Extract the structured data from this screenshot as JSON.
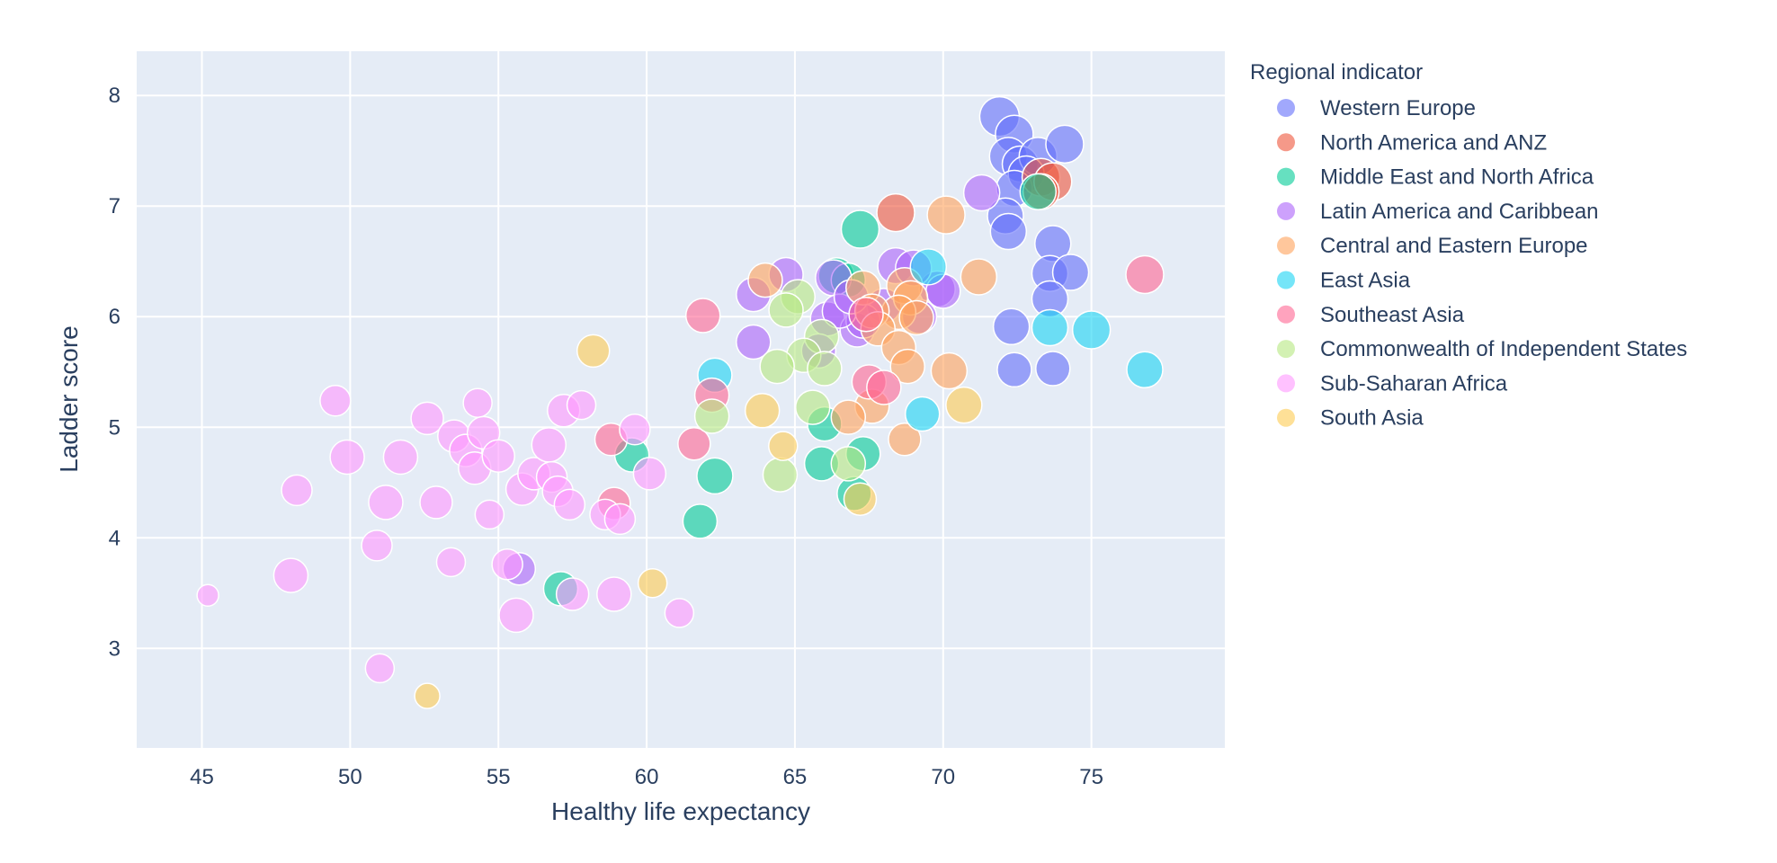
{
  "chart_data": {
    "type": "scatter",
    "xlabel": "Healthy life expectancy",
    "ylabel": "Ladder score",
    "xlim": [
      42.8,
      79.5
    ],
    "ylim": [
      2.1,
      8.4
    ],
    "x_ticks": [
      45,
      50,
      55,
      60,
      65,
      70,
      75
    ],
    "y_ticks": [
      3,
      4,
      5,
      6,
      7,
      8
    ],
    "grid": true,
    "marker_opacity": 0.6,
    "legend": {
      "title": "Regional indicator",
      "placement": "right"
    },
    "plot_bgcolor": "#e5ecf6",
    "series": [
      {
        "name": "Western Europe",
        "color": "#636efa",
        "points": [
          [
            71.9,
            7.81,
            22
          ],
          [
            72.4,
            7.65,
            21
          ],
          [
            72.2,
            7.45,
            21
          ],
          [
            72.6,
            7.38,
            20
          ],
          [
            73.2,
            7.45,
            21
          ],
          [
            74.1,
            7.56,
            21
          ],
          [
            72.8,
            7.29,
            20
          ],
          [
            72.4,
            7.16,
            20
          ],
          [
            72.1,
            6.91,
            20
          ],
          [
            72.2,
            6.77,
            20
          ],
          [
            73.7,
            6.66,
            20
          ],
          [
            73.6,
            6.39,
            20
          ],
          [
            74.3,
            6.4,
            20
          ],
          [
            73.6,
            6.16,
            20
          ],
          [
            72.3,
            5.91,
            20
          ],
          [
            73.7,
            5.53,
            19
          ],
          [
            72.4,
            5.52,
            19
          ]
        ]
      },
      {
        "name": "North America and ANZ",
        "color": "#ef553b",
        "points": [
          [
            73.3,
            7.26,
            21
          ],
          [
            73.7,
            7.22,
            21
          ],
          [
            68.4,
            6.94,
            21
          ],
          [
            73.3,
            7.13,
            20
          ]
        ]
      },
      {
        "name": "Middle East and North Africa",
        "color": "#00cc96",
        "points": [
          [
            67.2,
            6.79,
            21
          ],
          [
            73.2,
            7.13,
            20
          ],
          [
            66.4,
            6.37,
            20
          ],
          [
            62.3,
            4.56,
            20
          ],
          [
            61.8,
            4.15,
            19
          ],
          [
            66.0,
            5.03,
            19
          ],
          [
            65.9,
            4.67,
            19
          ],
          [
            67.0,
            4.4,
            19
          ],
          [
            67.3,
            4.76,
            19
          ],
          [
            57.1,
            3.54,
            19
          ],
          [
            59.5,
            4.75,
            19
          ],
          [
            66.8,
            6.33,
            19
          ]
        ]
      },
      {
        "name": "Latin America and Caribbean",
        "color": "#ab63fa",
        "points": [
          [
            71.3,
            7.12,
            20
          ],
          [
            69.8,
            6.25,
            20
          ],
          [
            68.4,
            6.46,
            20
          ],
          [
            66.3,
            6.35,
            20
          ],
          [
            69.0,
            6.44,
            20
          ],
          [
            64.7,
            6.38,
            19
          ],
          [
            63.6,
            6.2,
            19
          ],
          [
            66.1,
            5.98,
            19
          ],
          [
            69.2,
            6.0,
            19
          ],
          [
            63.6,
            5.77,
            19
          ],
          [
            67.1,
            5.88,
            19
          ],
          [
            68.0,
            6.1,
            19
          ],
          [
            67.3,
            5.96,
            19
          ],
          [
            65.8,
            5.69,
            19
          ],
          [
            66.5,
            6.05,
            19
          ],
          [
            55.7,
            3.72,
            18
          ],
          [
            66.9,
            6.18,
            19
          ],
          [
            70.0,
            6.23,
            19
          ]
        ]
      },
      {
        "name": "Central and Eastern Europe",
        "color": "#ffa15a",
        "points": [
          [
            70.1,
            6.92,
            21
          ],
          [
            71.2,
            6.36,
            20
          ],
          [
            68.7,
            6.28,
            20
          ],
          [
            64.0,
            6.33,
            19
          ],
          [
            67.3,
            6.26,
            19
          ],
          [
            68.9,
            6.17,
            19
          ],
          [
            68.5,
            6.04,
            19
          ],
          [
            67.6,
            6.05,
            19
          ],
          [
            69.1,
            5.99,
            19
          ],
          [
            67.8,
            5.89,
            19
          ],
          [
            68.5,
            5.72,
            19
          ],
          [
            68.8,
            5.55,
            19
          ],
          [
            70.2,
            5.51,
            20
          ],
          [
            67.6,
            5.19,
            19
          ],
          [
            66.8,
            5.09,
            19
          ],
          [
            68.7,
            4.89,
            18
          ]
        ]
      },
      {
        "name": "East Asia",
        "color": "#19d3f3",
        "points": [
          [
            69.5,
            6.45,
            20
          ],
          [
            75.0,
            5.88,
            21
          ],
          [
            73.6,
            5.9,
            20
          ],
          [
            76.8,
            5.52,
            20
          ],
          [
            69.3,
            5.12,
            19
          ],
          [
            62.3,
            5.47,
            19
          ]
        ]
      },
      {
        "name": "Southeast Asia",
        "color": "#ff6692",
        "points": [
          [
            76.8,
            6.38,
            21
          ],
          [
            61.9,
            6.01,
            19
          ],
          [
            67.4,
            6.02,
            19
          ],
          [
            67.5,
            5.41,
            19
          ],
          [
            68.0,
            5.36,
            19
          ],
          [
            62.2,
            5.29,
            19
          ],
          [
            61.6,
            4.85,
            18
          ],
          [
            58.8,
            4.89,
            18
          ],
          [
            58.9,
            4.31,
            18
          ]
        ]
      },
      {
        "name": "Commonwealth of Independent States",
        "color": "#b6e880",
        "points": [
          [
            65.1,
            6.18,
            19
          ],
          [
            64.7,
            6.06,
            19
          ],
          [
            65.9,
            5.82,
            19
          ],
          [
            65.3,
            5.65,
            19
          ],
          [
            64.4,
            5.55,
            19
          ],
          [
            65.6,
            5.18,
            19
          ],
          [
            62.2,
            5.1,
            19
          ],
          [
            64.5,
            4.57,
            19
          ],
          [
            66.8,
            4.67,
            19
          ],
          [
            66.0,
            5.53,
            19
          ]
        ]
      },
      {
        "name": "Sub-Saharan Africa",
        "color": "#ff97ff",
        "points": [
          [
            45.2,
            3.48,
            12
          ],
          [
            48.0,
            3.66,
            19
          ],
          [
            48.2,
            4.43,
            17
          ],
          [
            49.5,
            5.24,
            17
          ],
          [
            49.9,
            4.73,
            19
          ],
          [
            50.9,
            3.93,
            17
          ],
          [
            51.0,
            2.82,
            16
          ],
          [
            51.2,
            4.32,
            19
          ],
          [
            51.7,
            4.73,
            19
          ],
          [
            52.6,
            5.08,
            18
          ],
          [
            52.9,
            4.32,
            18
          ],
          [
            53.4,
            3.78,
            16
          ],
          [
            53.5,
            4.92,
            18
          ],
          [
            53.9,
            4.79,
            18
          ],
          [
            54.3,
            5.22,
            16
          ],
          [
            54.5,
            4.95,
            18
          ],
          [
            54.2,
            4.63,
            18
          ],
          [
            54.7,
            4.21,
            16
          ],
          [
            55.0,
            4.74,
            18
          ],
          [
            55.3,
            3.76,
            17
          ],
          [
            55.6,
            3.3,
            19
          ],
          [
            55.8,
            4.44,
            18
          ],
          [
            56.2,
            4.58,
            18
          ],
          [
            56.7,
            4.84,
            19
          ],
          [
            56.8,
            4.55,
            17
          ],
          [
            57.0,
            4.42,
            17
          ],
          [
            57.2,
            5.15,
            18
          ],
          [
            57.4,
            4.3,
            17
          ],
          [
            57.5,
            3.49,
            18
          ],
          [
            57.8,
            5.2,
            16
          ],
          [
            58.6,
            4.21,
            17
          ],
          [
            58.9,
            3.49,
            19
          ],
          [
            59.1,
            4.17,
            17
          ],
          [
            59.6,
            4.98,
            17
          ],
          [
            60.1,
            4.58,
            18
          ],
          [
            61.1,
            3.32,
            16
          ]
        ]
      },
      {
        "name": "South Asia",
        "color": "#fecb52",
        "points": [
          [
            58.2,
            5.69,
            18
          ],
          [
            63.9,
            5.15,
            19
          ],
          [
            64.6,
            4.83,
            16
          ],
          [
            67.2,
            4.35,
            18
          ],
          [
            60.2,
            3.59,
            16
          ],
          [
            52.6,
            2.57,
            14
          ],
          [
            70.7,
            5.2,
            20
          ]
        ]
      }
    ]
  }
}
